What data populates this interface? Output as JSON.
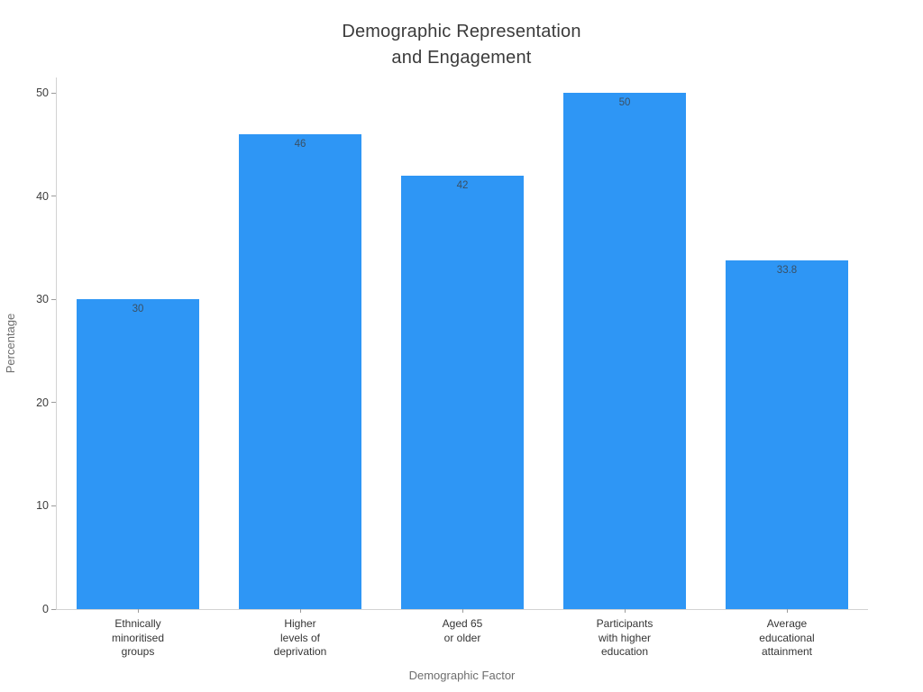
{
  "figure": {
    "title": "Demographic Representation\nand Engagement",
    "x_axis_title": "Demographic Factor",
    "y_axis_title": "Percentage"
  },
  "chart_data": {
    "type": "bar",
    "title": "Demographic Representation and Engagement",
    "xlabel": "Demographic Factor",
    "ylabel": "Percentage",
    "categories": [
      "Ethnically\nminoritised\ngroups",
      "Higher\nlevels of\ndeprivation",
      "Aged 65\nor older",
      "Participants\nwith higher\neducation",
      "Average\neducational\nattainment"
    ],
    "values": [
      30,
      46,
      42,
      50,
      33.8
    ],
    "bar_labels": [
      "30",
      "46",
      "42",
      "50",
      "33.8"
    ],
    "yticks": [
      0,
      10,
      20,
      30,
      40,
      50
    ],
    "ylim": [
      0,
      51.6
    ],
    "grid": false,
    "legend": "none",
    "bar_label_position": "inside-top"
  },
  "colors": {
    "background": "#ffffff",
    "bar_fill": "#2e96f5",
    "bar_label": "#3a5064",
    "axis_line": "#d2d2d2",
    "tick_mark": "#9b9b9b",
    "tick_label": "#3d3d3d",
    "category_label": "#353535",
    "axis_title": "#6e6e6e",
    "title": "#3b3b3b"
  }
}
